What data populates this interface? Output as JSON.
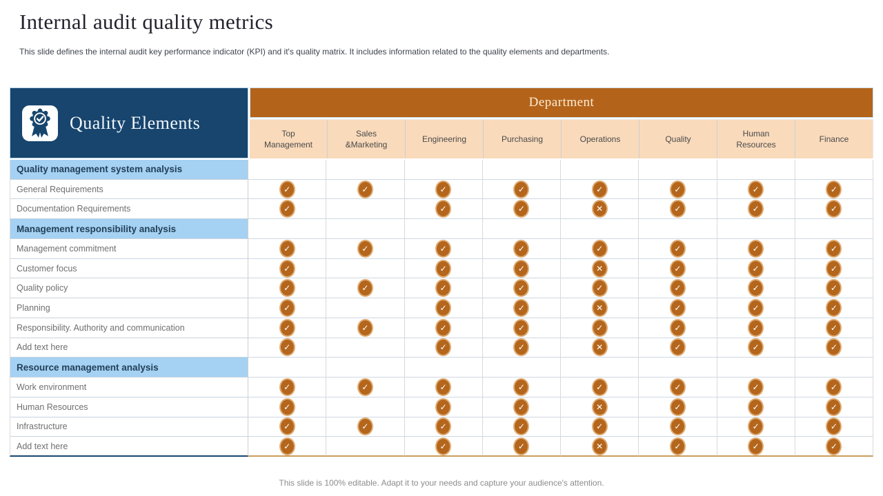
{
  "slide": {
    "title": "Internal audit quality metrics",
    "subtitle": "This slide defines the internal audit key performance indicator (KPI) and it's quality matrix. It includes information related to the quality elements and departments.",
    "footer": "This slide is 100% editable. Adapt it to your needs and capture your audience's attention."
  },
  "colors": {
    "navy": "#17456e",
    "header_orange": "#b4641a",
    "header_peach": "#f9dabb",
    "section_blue": "#a5d1f2",
    "mark_orange": "#b4661c",
    "mark_ring": "#dfab72"
  },
  "table": {
    "corner_label": "Quality Elements",
    "corner_icon": "award-badge-icon",
    "group_header": "Department",
    "icons": {
      "check": "✓",
      "cross": "✕"
    },
    "columns": [
      "Top Management",
      "Sales &Marketing",
      "Engineering",
      "Purchasing",
      "Operations",
      "Quality",
      "Human Resources",
      "Finance"
    ],
    "rows": [
      {
        "type": "section",
        "label": "Quality management system analysis",
        "cells": [
          "",
          "",
          "",
          "",
          "",
          "",
          "",
          ""
        ]
      },
      {
        "type": "data",
        "label": "General Requirements",
        "cells": [
          "check",
          "check",
          "check",
          "check",
          "check",
          "check",
          "check",
          "check"
        ]
      },
      {
        "type": "data",
        "label": "Documentation Requirements",
        "cells": [
          "check",
          "",
          "check",
          "check",
          "cross",
          "check",
          "check",
          "check"
        ]
      },
      {
        "type": "section",
        "label": "Management responsibility analysis",
        "cells": [
          "",
          "",
          "",
          "",
          "",
          "",
          "",
          ""
        ]
      },
      {
        "type": "data",
        "label": "Management commitment",
        "cells": [
          "check",
          "check",
          "check",
          "check",
          "check",
          "check",
          "check",
          "check"
        ]
      },
      {
        "type": "data",
        "label": "Customer focus",
        "cells": [
          "check",
          "",
          "check",
          "check",
          "cross",
          "check",
          "check",
          "check"
        ]
      },
      {
        "type": "data",
        "label": "Quality policy",
        "cells": [
          "check",
          "check",
          "check",
          "check",
          "check",
          "check",
          "check",
          "check"
        ]
      },
      {
        "type": "data",
        "label": "Planning",
        "cells": [
          "check",
          "",
          "check",
          "check",
          "cross",
          "check",
          "check",
          "check"
        ]
      },
      {
        "type": "data",
        "label": "Responsibility. Authority and communication",
        "cells": [
          "check",
          "check",
          "check",
          "check",
          "check",
          "check",
          "check",
          "check"
        ]
      },
      {
        "type": "data",
        "label": "Add text here",
        "cells": [
          "check",
          "",
          "check",
          "check",
          "cross",
          "check",
          "check",
          "check"
        ]
      },
      {
        "type": "section",
        "label": "Resource management analysis",
        "cells": [
          "",
          "",
          "",
          "",
          "",
          "",
          "",
          ""
        ]
      },
      {
        "type": "data",
        "label": "Work environment",
        "cells": [
          "check",
          "check",
          "check",
          "check",
          "check",
          "check",
          "check",
          "check"
        ]
      },
      {
        "type": "data",
        "label": "Human Resources",
        "cells": [
          "check",
          "",
          "check",
          "check",
          "cross",
          "check",
          "check",
          "check"
        ]
      },
      {
        "type": "data",
        "label": "Infrastructure",
        "cells": [
          "check",
          "check",
          "check",
          "check",
          "check",
          "check",
          "check",
          "check"
        ]
      },
      {
        "type": "data",
        "label": "Add text here",
        "cells": [
          "check",
          "",
          "check",
          "check",
          "cross",
          "check",
          "check",
          "check"
        ]
      }
    ]
  }
}
